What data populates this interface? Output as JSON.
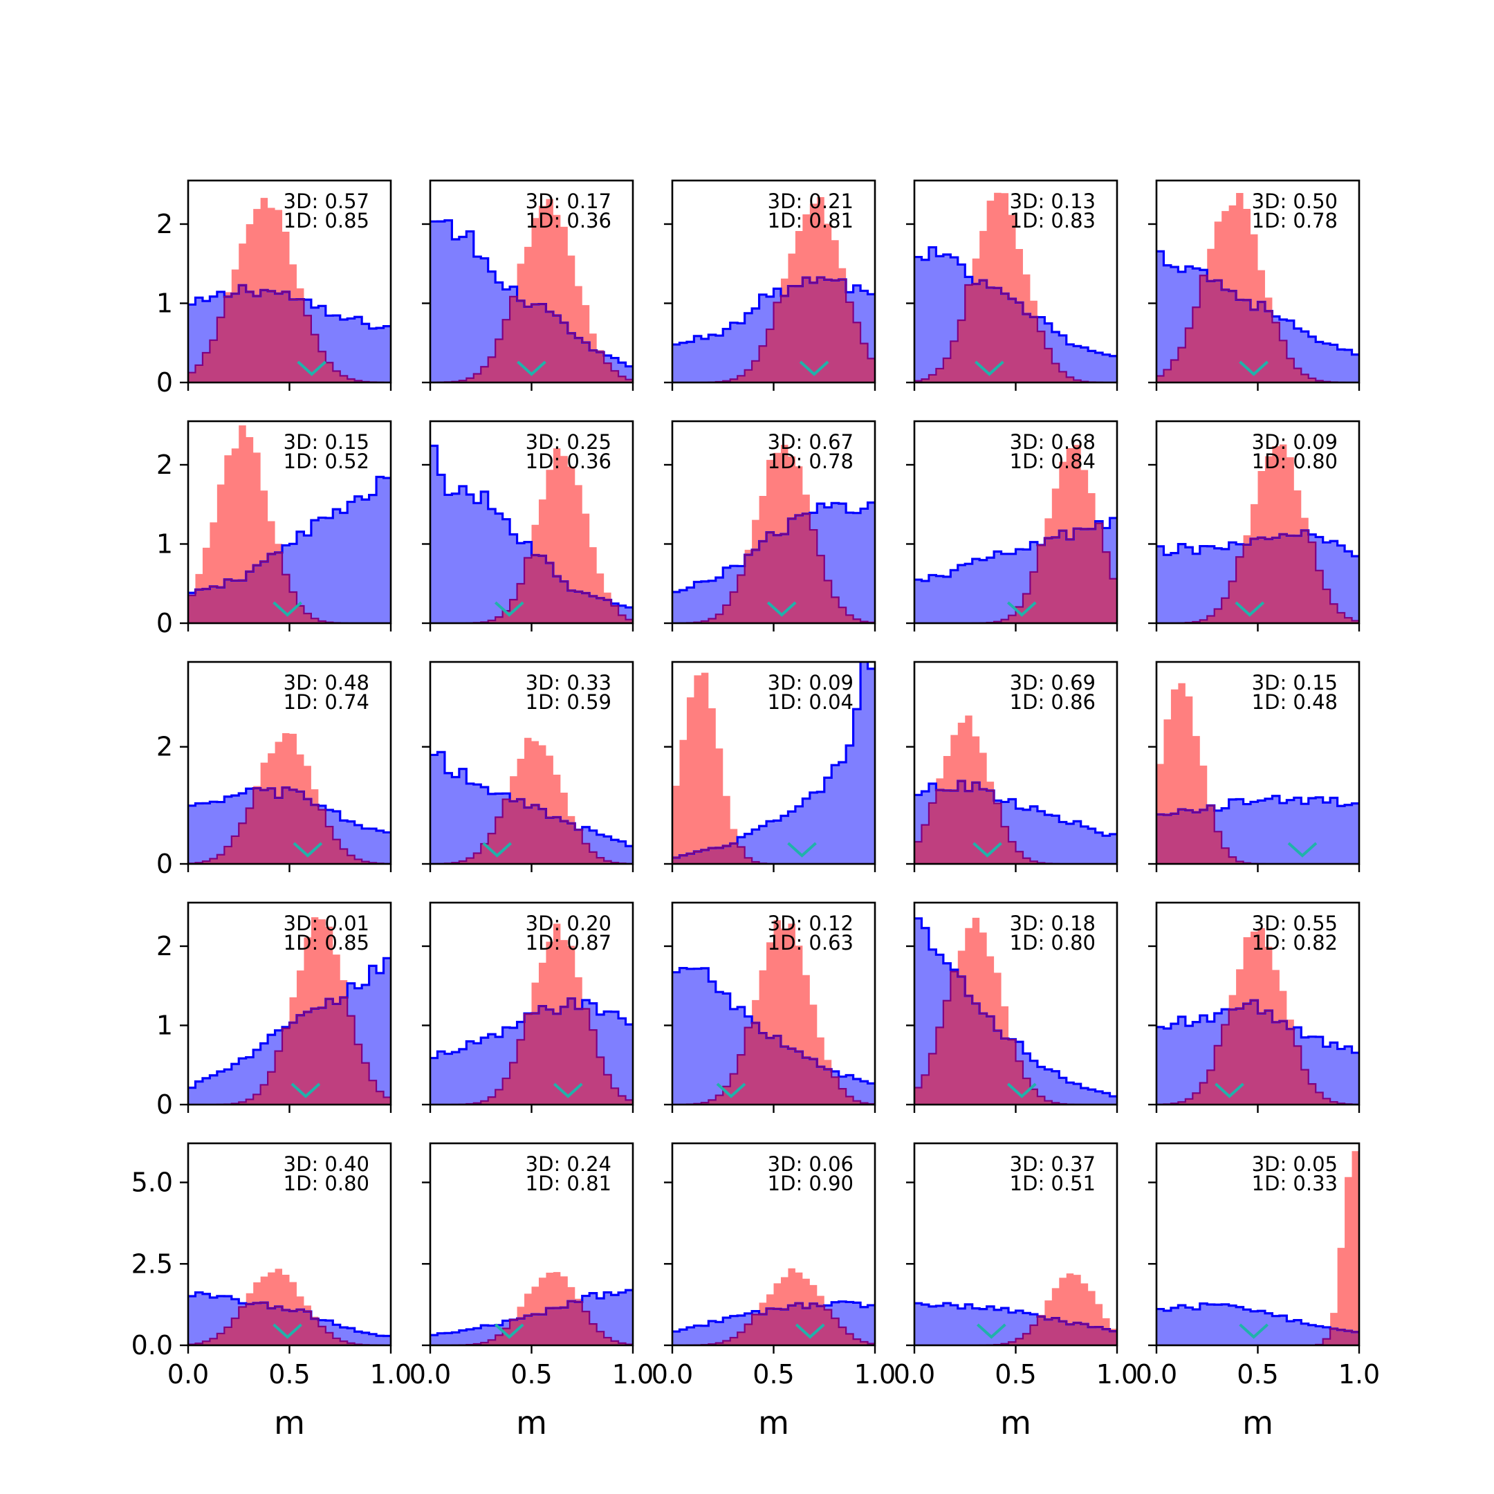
{
  "colors": {
    "blue_fill": "#7f7fff",
    "blue_line": "#0000ff",
    "red_fill": "#ff7f7f",
    "overlap_line": "#800080",
    "marker": "#20b2aa",
    "frame": "#000000"
  },
  "chart_data": {
    "type": "histogram-grid",
    "rows": 5,
    "cols": 5,
    "xlim": [
      0.0,
      1.0
    ],
    "xticks": [
      "0.0",
      "0.5",
      "1.0"
    ],
    "xlabel": "m",
    "row_yticks": [
      {
        "ylim": [
          0,
          2.55
        ],
        "ticks": [
          {
            "v": 0,
            "label": "0"
          },
          {
            "v": 1,
            "label": "1"
          },
          {
            "v": 2,
            "label": "2"
          }
        ]
      },
      {
        "ylim": [
          0,
          2.55
        ],
        "ticks": [
          {
            "v": 0,
            "label": "0"
          },
          {
            "v": 1,
            "label": "1"
          },
          {
            "v": 2,
            "label": "2"
          }
        ]
      },
      {
        "ylim": [
          0,
          3.45
        ],
        "ticks": [
          {
            "v": 0,
            "label": "0"
          },
          {
            "v": 2,
            "label": "2"
          }
        ]
      },
      {
        "ylim": [
          0,
          2.55
        ],
        "ticks": [
          {
            "v": 0,
            "label": "0"
          },
          {
            "v": 1,
            "label": "1"
          },
          {
            "v": 2,
            "label": "2"
          }
        ]
      },
      {
        "ylim": [
          0,
          6.2
        ],
        "ticks": [
          {
            "v": 0,
            "label": "0.0"
          },
          {
            "v": 2.5,
            "label": "2.5"
          },
          {
            "v": 5,
            "label": "5.0"
          }
        ]
      }
    ],
    "panels": [
      {
        "row": 0,
        "col": 0,
        "a3d": "3D: 0.57",
        "a1d": "1D: 0.85",
        "marker": 0.61,
        "red": {
          "kind": "gauss",
          "mu": 0.38,
          "sig": 0.15,
          "peak": 2.35
        },
        "blue": {
          "kind": "pts",
          "pts": [
            [
              0,
              0.95
            ],
            [
              0.3,
              1.2
            ],
            [
              0.5,
              1.1
            ],
            [
              0.7,
              0.85
            ],
            [
              1,
              0.68
            ]
          ]
        }
      },
      {
        "row": 0,
        "col": 1,
        "a3d": "3D: 0.17",
        "a1d": "1D: 0.36",
        "marker": 0.5,
        "red": {
          "kind": "gauss",
          "mu": 0.58,
          "sig": 0.14,
          "peak": 2.3
        },
        "blue": {
          "kind": "pts",
          "pts": [
            [
              0,
              2.0
            ],
            [
              0.2,
              1.8
            ],
            [
              0.35,
              1.2
            ],
            [
              0.55,
              0.95
            ],
            [
              0.8,
              0.4
            ],
            [
              1,
              0.2
            ]
          ]
        }
      },
      {
        "row": 0,
        "col": 2,
        "a3d": "3D: 0.21",
        "a1d": "1D: 0.81",
        "marker": 0.7,
        "red": {
          "kind": "gauss",
          "mu": 0.7,
          "sig": 0.14,
          "peak": 2.3
        },
        "blue": {
          "kind": "pts",
          "pts": [
            [
              0,
              0.45
            ],
            [
              0.3,
              0.7
            ],
            [
              0.5,
              1.15
            ],
            [
              0.75,
              1.3
            ],
            [
              1,
              1.1
            ]
          ]
        }
      },
      {
        "row": 0,
        "col": 3,
        "a3d": "3D: 0.13",
        "a1d": "1D: 0.83",
        "marker": 0.37,
        "red": {
          "kind": "gauss",
          "mu": 0.42,
          "sig": 0.13,
          "peak": 2.35
        },
        "blue": {
          "kind": "pts",
          "pts": [
            [
              0,
              1.5
            ],
            [
              0.1,
              1.65
            ],
            [
              0.3,
              1.3
            ],
            [
              0.5,
              1.0
            ],
            [
              0.8,
              0.45
            ],
            [
              1,
              0.3
            ]
          ]
        }
      },
      {
        "row": 0,
        "col": 4,
        "a3d": "3D: 0.50",
        "a1d": "1D: 0.78",
        "marker": 0.48,
        "red": {
          "kind": "gauss",
          "mu": 0.38,
          "sig": 0.14,
          "peak": 2.35
        },
        "blue": {
          "kind": "pts",
          "pts": [
            [
              0,
              1.6
            ],
            [
              0.2,
              1.45
            ],
            [
              0.4,
              1.1
            ],
            [
              0.6,
              0.85
            ],
            [
              0.8,
              0.5
            ],
            [
              1,
              0.35
            ]
          ]
        }
      },
      {
        "row": 1,
        "col": 0,
        "a3d": "3D: 0.15",
        "a1d": "1D: 0.52",
        "marker": 0.49,
        "red": {
          "kind": "gauss",
          "mu": 0.27,
          "sig": 0.13,
          "peak": 2.4
        },
        "blue": {
          "kind": "pts",
          "pts": [
            [
              0,
              0.35
            ],
            [
              0.3,
              0.6
            ],
            [
              0.5,
              1.05
            ],
            [
              0.75,
              1.4
            ],
            [
              1,
              1.8
            ]
          ]
        }
      },
      {
        "row": 1,
        "col": 1,
        "a3d": "3D: 0.25",
        "a1d": "1D: 0.36",
        "marker": 0.39,
        "red": {
          "kind": "gauss",
          "mu": 0.65,
          "sig": 0.12,
          "peak": 2.2
        },
        "blue": {
          "kind": "pts",
          "pts": [
            [
              0,
              2.3
            ],
            [
              0.05,
              1.8
            ],
            [
              0.3,
              1.5
            ],
            [
              0.5,
              0.95
            ],
            [
              0.7,
              0.4
            ],
            [
              1,
              0.2
            ]
          ]
        }
      },
      {
        "row": 1,
        "col": 2,
        "a3d": "3D: 0.67",
        "a1d": "1D: 0.78",
        "marker": 0.54,
        "red": {
          "kind": "gauss",
          "mu": 0.55,
          "sig": 0.13,
          "peak": 2.3
        },
        "blue": {
          "kind": "pts",
          "pts": [
            [
              0,
              0.35
            ],
            [
              0.3,
              0.7
            ],
            [
              0.55,
              1.2
            ],
            [
              0.75,
              1.45
            ],
            [
              1,
              1.52
            ]
          ]
        }
      },
      {
        "row": 1,
        "col": 3,
        "a3d": "3D: 0.68",
        "a1d": "1D: 0.84",
        "marker": 0.53,
        "red": {
          "kind": "gauss",
          "mu": 0.78,
          "sig": 0.12,
          "peak": 2.25
        },
        "blue": {
          "kind": "pts",
          "pts": [
            [
              0,
              0.5
            ],
            [
              0.3,
              0.75
            ],
            [
              0.6,
              1.0
            ],
            [
              0.8,
              1.15
            ],
            [
              1,
              1.25
            ]
          ]
        }
      },
      {
        "row": 1,
        "col": 4,
        "a3d": "3D: 0.09",
        "a1d": "1D: 0.80",
        "marker": 0.46,
        "red": {
          "kind": "gauss",
          "mu": 0.6,
          "sig": 0.13,
          "peak": 2.3
        },
        "blue": {
          "kind": "pts",
          "pts": [
            [
              0,
              0.9
            ],
            [
              0.25,
              0.95
            ],
            [
              0.5,
              1.05
            ],
            [
              0.75,
              1.1
            ],
            [
              1,
              0.85
            ]
          ]
        }
      },
      {
        "row": 2,
        "col": 0,
        "a3d": "3D: 0.48",
        "a1d": "1D: 0.74",
        "marker": 0.59,
        "red": {
          "kind": "gauss",
          "mu": 0.48,
          "sig": 0.14,
          "peak": 2.2
        },
        "blue": {
          "kind": "pts",
          "pts": [
            [
              0,
              0.9
            ],
            [
              0.3,
              1.25
            ],
            [
              0.55,
              1.2
            ],
            [
              0.8,
              0.7
            ],
            [
              1,
              0.5
            ]
          ]
        }
      },
      {
        "row": 2,
        "col": 1,
        "a3d": "3D: 0.33",
        "a1d": "1D: 0.59",
        "marker": 0.33,
        "red": {
          "kind": "gauss",
          "mu": 0.52,
          "sig": 0.13,
          "peak": 2.15
        },
        "blue": {
          "kind": "pts",
          "pts": [
            [
              0,
              2.1
            ],
            [
              0.1,
              1.6
            ],
            [
              0.3,
              1.3
            ],
            [
              0.6,
              0.8
            ],
            [
              1,
              0.3
            ]
          ]
        }
      },
      {
        "row": 2,
        "col": 2,
        "a3d": "3D: 0.09",
        "a1d": "1D: 0.04",
        "marker": 0.64,
        "red": {
          "kind": "gauss",
          "mu": 0.14,
          "sig": 0.09,
          "peak": 3.2
        },
        "blue": {
          "kind": "pts",
          "pts": [
            [
              0,
              0.1
            ],
            [
              0.3,
              0.35
            ],
            [
              0.5,
              0.75
            ],
            [
              0.7,
              1.2
            ],
            [
              0.85,
              1.8
            ],
            [
              0.95,
              3.3
            ],
            [
              1,
              3.3
            ]
          ]
        }
      },
      {
        "row": 2,
        "col": 3,
        "a3d": "3D: 0.69",
        "a1d": "1D: 0.86",
        "marker": 0.36,
        "red": {
          "kind": "gauss",
          "mu": 0.25,
          "sig": 0.12,
          "peak": 2.45
        },
        "blue": {
          "kind": "pts",
          "pts": [
            [
              0,
              1.25
            ],
            [
              0.3,
              1.35
            ],
            [
              0.5,
              1.0
            ],
            [
              0.8,
              0.7
            ],
            [
              1,
              0.45
            ]
          ]
        }
      },
      {
        "row": 2,
        "col": 4,
        "a3d": "3D: 0.15",
        "a1d": "1D: 0.48",
        "marker": 0.72,
        "red": {
          "kind": "gauss",
          "mu": 0.12,
          "sig": 0.1,
          "peak": 3.0
        },
        "blue": {
          "kind": "pts",
          "pts": [
            [
              0,
              0.9
            ],
            [
              0.2,
              0.85
            ],
            [
              0.4,
              1.1
            ],
            [
              0.7,
              1.1
            ],
            [
              1,
              1.05
            ]
          ]
        }
      },
      {
        "row": 3,
        "col": 0,
        "a3d": "3D: 0.01",
        "a1d": "1D: 0.85",
        "marker": 0.58,
        "red": {
          "kind": "gauss",
          "mu": 0.65,
          "sig": 0.13,
          "peak": 2.3
        },
        "blue": {
          "kind": "pts",
          "pts": [
            [
              0,
              0.2
            ],
            [
              0.3,
              0.6
            ],
            [
              0.5,
              1.0
            ],
            [
              0.8,
              1.45
            ],
            [
              1,
              1.8
            ]
          ]
        }
      },
      {
        "row": 3,
        "col": 1,
        "a3d": "3D: 0.20",
        "a1d": "1D: 0.87",
        "marker": 0.68,
        "red": {
          "kind": "gauss",
          "mu": 0.63,
          "sig": 0.13,
          "peak": 2.2
        },
        "blue": {
          "kind": "pts",
          "pts": [
            [
              0,
              0.6
            ],
            [
              0.3,
              0.85
            ],
            [
              0.5,
              1.1
            ],
            [
              0.7,
              1.3
            ],
            [
              1,
              1.05
            ]
          ]
        }
      },
      {
        "row": 3,
        "col": 2,
        "a3d": "3D: 0.12",
        "a1d": "1D: 0.63",
        "marker": 0.29,
        "red": {
          "kind": "gauss",
          "mu": 0.55,
          "sig": 0.13,
          "peak": 2.3
        },
        "blue": {
          "kind": "pts",
          "pts": [
            [
              0,
              1.75
            ],
            [
              0.2,
              1.6
            ],
            [
              0.4,
              1.0
            ],
            [
              0.6,
              0.7
            ],
            [
              0.8,
              0.4
            ],
            [
              1,
              0.25
            ]
          ]
        }
      },
      {
        "row": 3,
        "col": 3,
        "a3d": "3D: 0.18",
        "a1d": "1D: 0.80",
        "marker": 0.53,
        "red": {
          "kind": "gauss",
          "mu": 0.3,
          "sig": 0.13,
          "peak": 2.3
        },
        "blue": {
          "kind": "pts",
          "pts": [
            [
              0,
              2.5
            ],
            [
              0.05,
              2.3
            ],
            [
              0.2,
              1.6
            ],
            [
              0.4,
              1.0
            ],
            [
              0.6,
              0.55
            ],
            [
              0.8,
              0.25
            ],
            [
              1,
              0.1
            ]
          ]
        }
      },
      {
        "row": 3,
        "col": 4,
        "a3d": "3D: 0.55",
        "a1d": "1D: 0.82",
        "marker": 0.36,
        "red": {
          "kind": "gauss",
          "mu": 0.5,
          "sig": 0.13,
          "peak": 2.25
        },
        "blue": {
          "kind": "pts",
          "pts": [
            [
              0,
              1.0
            ],
            [
              0.3,
              1.1
            ],
            [
              0.5,
              1.25
            ],
            [
              0.75,
              0.85
            ],
            [
              1,
              0.65
            ]
          ]
        }
      },
      {
        "row": 4,
        "col": 0,
        "a3d": "3D: 0.40",
        "a1d": "1D: 0.80",
        "marker": 0.49,
        "red": {
          "kind": "gauss",
          "mu": 0.43,
          "sig": 0.14,
          "peak": 2.3
        },
        "blue": {
          "kind": "pts",
          "pts": [
            [
              0,
              1.55
            ],
            [
              0.3,
              1.35
            ],
            [
              0.55,
              1.05
            ],
            [
              0.8,
              0.5
            ],
            [
              1,
              0.25
            ]
          ]
        }
      },
      {
        "row": 4,
        "col": 1,
        "a3d": "3D: 0.24",
        "a1d": "1D: 0.81",
        "marker": 0.39,
        "red": {
          "kind": "gauss",
          "mu": 0.6,
          "sig": 0.13,
          "peak": 2.3
        },
        "blue": {
          "kind": "pts",
          "pts": [
            [
              0,
              0.3
            ],
            [
              0.3,
              0.6
            ],
            [
              0.6,
              1.1
            ],
            [
              0.8,
              1.5
            ],
            [
              1,
              1.8
            ]
          ]
        }
      },
      {
        "row": 4,
        "col": 2,
        "a3d": "3D: 0.06",
        "a1d": "1D: 0.90",
        "marker": 0.68,
        "red": {
          "kind": "gauss",
          "mu": 0.6,
          "sig": 0.14,
          "peak": 2.3
        },
        "blue": {
          "kind": "pts",
          "pts": [
            [
              0,
              0.4
            ],
            [
              0.3,
              0.85
            ],
            [
              0.6,
              1.2
            ],
            [
              0.85,
              1.25
            ],
            [
              1,
              1.2
            ]
          ]
        }
      },
      {
        "row": 4,
        "col": 3,
        "a3d": "3D: 0.37",
        "a1d": "1D: 0.51",
        "marker": 0.38,
        "red": {
          "kind": "gauss",
          "mu": 0.78,
          "sig": 0.12,
          "peak": 2.2
        },
        "blue": {
          "kind": "pts",
          "pts": [
            [
              0,
              1.3
            ],
            [
              0.3,
              1.2
            ],
            [
              0.55,
              1.0
            ],
            [
              0.8,
              0.65
            ],
            [
              1,
              0.45
            ]
          ]
        }
      },
      {
        "row": 4,
        "col": 4,
        "a3d": "3D: 0.05",
        "a1d": "1D: 0.33",
        "marker": 0.48,
        "red": {
          "kind": "gauss",
          "mu": 0.97,
          "sig": 0.05,
          "peak": 5.9
        },
        "blue": {
          "kind": "pts",
          "pts": [
            [
              0,
              1.1
            ],
            [
              0.3,
              1.25
            ],
            [
              0.6,
              0.9
            ],
            [
              0.8,
              0.55
            ],
            [
              1,
              0.4
            ]
          ]
        }
      }
    ]
  }
}
